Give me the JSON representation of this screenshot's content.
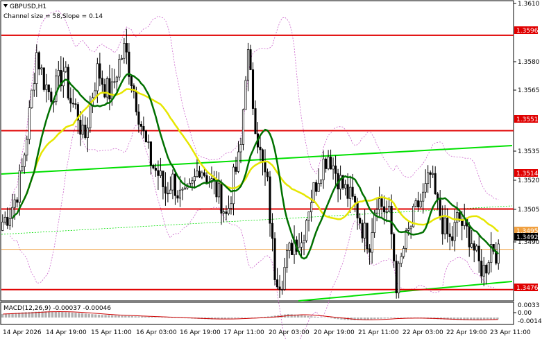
{
  "window": {
    "symbol_title": "GBPUSD,H1",
    "channel_info": "Channel size = 58,Slope = 0.14",
    "macd_title": "MACD(12,26,9) -0.00037 -0.00046",
    "arrow_icon": "triangle-down-icon"
  },
  "colors": {
    "background": "#ffffff",
    "candle": "#000000",
    "level": "#e00000",
    "channel": "#00e000",
    "ma_fast": "#e6e600",
    "ma_slow": "#007000",
    "bollinger": "#cc66cc",
    "macd_hist": "#b0b0b0",
    "macd_signal": "#cc0000",
    "current_tag": "#000000"
  },
  "price_axis": {
    "ticks": [
      "1.3610",
      "1.3580",
      "1.3565",
      "1.3535",
      "1.3520",
      "1.3505",
      "1.3490"
    ],
    "tags": [
      {
        "label": "1.3596",
        "kind": "level"
      },
      {
        "label": "1.3551",
        "kind": "level"
      },
      {
        "label": "1.3514",
        "kind": "level"
      },
      {
        "label": "1.3495",
        "kind": "orange"
      },
      {
        "label": "1.3492",
        "kind": "current"
      },
      {
        "label": "1.3476",
        "kind": "level"
      }
    ]
  },
  "macd_axis": {
    "ticks": [
      "0.0033",
      "0.00",
      "-0.0014"
    ]
  },
  "time_axis": {
    "labels": [
      "14 Apr 2026",
      "14 Apr 19:00",
      "15 Apr 11:00",
      "16 Apr 03:00",
      "16 Apr 19:00",
      "17 Apr 11:00",
      "20 Apr 03:00",
      "20 Apr 19:00",
      "21 Apr 11:00",
      "22 Apr 03:00",
      "22 Apr 19:00",
      "23 Apr 11:00"
    ]
  },
  "chart_data": {
    "type": "candlestick",
    "symbol": "GBPUSD",
    "timeframe": "H1",
    "price_range": [
      1.3471,
      1.3612
    ],
    "horizontal_levels": [
      1.3596,
      1.3551,
      1.3514,
      1.3476
    ],
    "current_price": 1.3492,
    "marked_price": 1.3495,
    "close_path": [
      1.3508,
      1.3512,
      1.352,
      1.3535,
      1.356,
      1.3588,
      1.3575,
      1.3568,
      1.3572,
      1.358,
      1.3565,
      1.356,
      1.3545,
      1.3565,
      1.358,
      1.3572,
      1.3568,
      1.3582,
      1.359,
      1.3575,
      1.356,
      1.3545,
      1.3535,
      1.353,
      1.3522,
      1.3528,
      1.352,
      1.3518,
      1.3525,
      1.3535,
      1.353,
      1.3525,
      1.352,
      1.351,
      1.3528,
      1.354,
      1.359,
      1.356,
      1.3538,
      1.3525,
      1.3485,
      1.348,
      1.3492,
      1.35,
      1.3498,
      1.3515,
      1.3525,
      1.3535,
      1.354,
      1.3532,
      1.3525,
      1.352,
      1.3515,
      1.3505,
      1.3498,
      1.352,
      1.3515,
      1.351,
      1.3478,
      1.3495,
      1.3505,
      1.3515,
      1.352,
      1.353,
      1.3515,
      1.3505,
      1.3498,
      1.351,
      1.3505,
      1.35,
      1.3488,
      1.3485,
      1.3498,
      1.3492
    ],
    "macd_range": [
      -0.0014,
      0.0033
    ],
    "macd_hist": [
      0.0008,
      0.001,
      0.0012,
      0.0013,
      0.0014,
      0.0013,
      0.0012,
      0.001,
      0.0008,
      0.0006,
      0.0005,
      0.0004,
      0.0003,
      0.0002,
      0.0001,
      0.0,
      -0.0001,
      -0.0002,
      -0.0003,
      -0.0004,
      -0.0003,
      -0.0002,
      -0.0001,
      0.0,
      0.0002,
      0.0005,
      0.0008,
      0.0006,
      0.0003,
      0.0001,
      -0.0002,
      -0.0005,
      -0.0006,
      -0.0005,
      -0.0003,
      -0.0002,
      -0.0001,
      -0.0001,
      -0.0002,
      -0.0003,
      -0.0004,
      -0.0005,
      -0.0006,
      -0.0005,
      -0.0004,
      -0.0004
    ]
  }
}
